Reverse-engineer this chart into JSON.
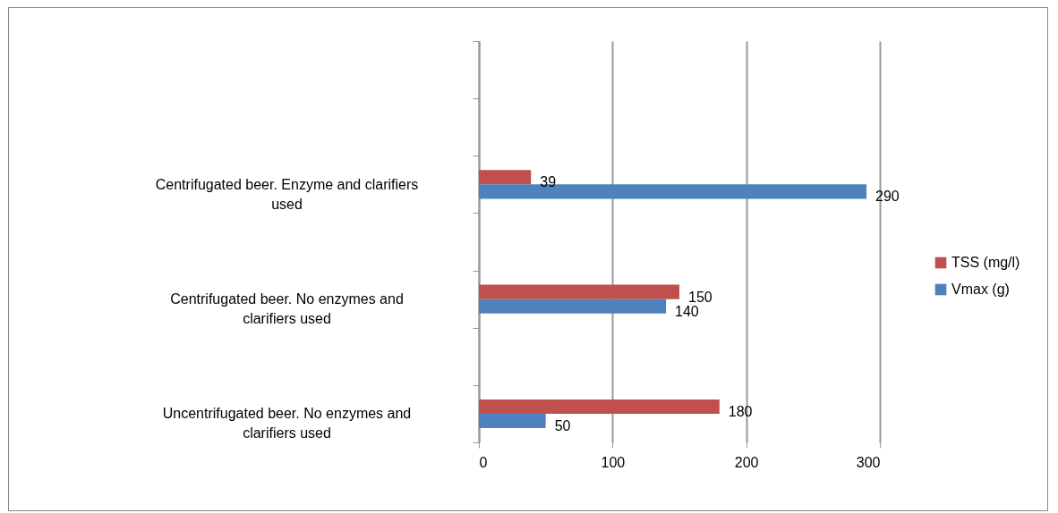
{
  "chart_data": {
    "type": "bar",
    "orientation": "horizontal",
    "categories": [
      null,
      null,
      "Centrifugated beer. Enzyme and clarifiers used",
      null,
      "Centrifugated beer. No enzymes and clarifiers used",
      null,
      "Uncentrifugated beer. No enzymes and clarifiers used"
    ],
    "series": [
      {
        "name": "TSS (mg/l)",
        "color": "#c0504d",
        "values": [
          null,
          null,
          39,
          null,
          150,
          null,
          180
        ]
      },
      {
        "name": "Vmax  (g)",
        "color": "#4f81bd",
        "values": [
          null,
          null,
          290,
          null,
          140,
          null,
          50
        ]
      }
    ],
    "xlim": [
      0,
      300
    ],
    "xticks": [
      0,
      100,
      200,
      300
    ],
    "grid": "x",
    "legend": "right",
    "data_labels": true
  }
}
